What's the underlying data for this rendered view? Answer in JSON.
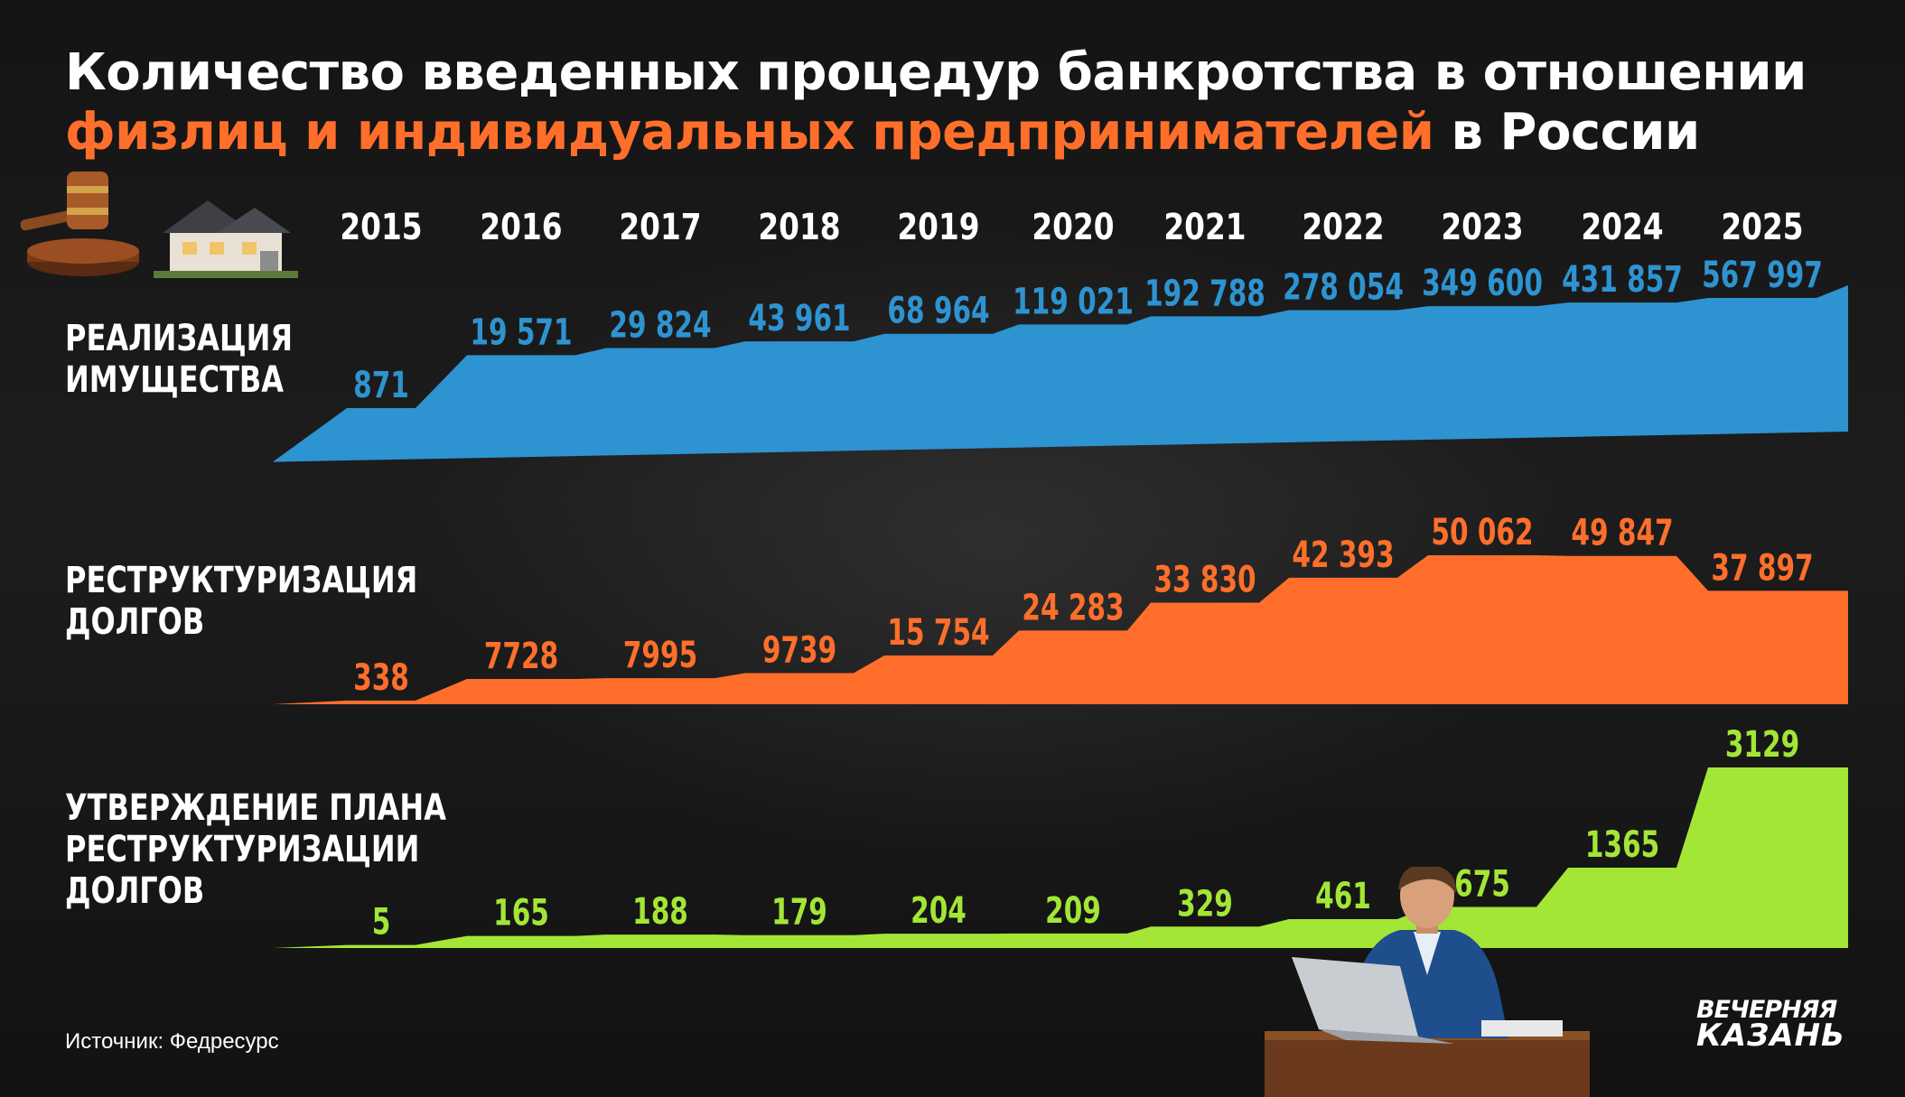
{
  "title": {
    "line1": "Количество введенных процедур банкротства в отношении",
    "line2_accent": "физлиц и индивидуальных предпринимателей",
    "line2_rest": " в России"
  },
  "source": "Источник: Федресурс",
  "logo": {
    "line1": "ВЕЧЕРНЯЯ",
    "line2": "КАЗАНЬ"
  },
  "colors": {
    "blue": "#2e93d1",
    "orange": "#ff6f2b",
    "green": "#a3e636",
    "background": "#141414",
    "text": "#ffffff"
  },
  "chart_data": {
    "type": "area",
    "x": [
      "2015",
      "2016",
      "2017",
      "2018",
      "2019",
      "2020",
      "2021",
      "2022",
      "2023",
      "2024",
      "2025"
    ],
    "series": [
      {
        "name": "РЕАЛИЗАЦИЯ ИМУЩЕСТВА",
        "label_lines": [
          "РЕАЛИЗАЦИЯ",
          "ИМУЩЕСТВА"
        ],
        "color": "#2e93d1",
        "values": [
          871,
          19571,
          29824,
          43961,
          68964,
          119021,
          192788,
          278054,
          349600,
          431857,
          567997
        ],
        "value_labels": [
          "871",
          "19 571",
          "29 824",
          "43 961",
          "68 964",
          "119 021",
          "192 788",
          "278 054",
          "349 600",
          "431 857",
          "567 997"
        ]
      },
      {
        "name": "РЕСТРУКТУРИЗАЦИЯ ДОЛГОВ",
        "label_lines": [
          "РЕСТРУКТУРИЗАЦИЯ",
          "ДОЛГОВ"
        ],
        "color": "#ff6f2b",
        "values": [
          338,
          7728,
          7995,
          9739,
          15754,
          24283,
          33830,
          42393,
          50062,
          49847,
          37897
        ],
        "value_labels": [
          "338",
          "7728",
          "7995",
          "9739",
          "15 754",
          "24 283",
          "33 830",
          "42 393",
          "50 062",
          "49 847",
          "37 897"
        ]
      },
      {
        "name": "УТВЕРЖДЕНИЕ ПЛАНА РЕСТРУКТУРИЗАЦИИ ДОЛГОВ",
        "label_lines": [
          "УТВЕРЖДЕНИЕ ПЛАНА",
          "РЕСТРУКТУРИЗАЦИИ",
          "ДОЛГОВ"
        ],
        "color": "#a3e636",
        "values": [
          5,
          165,
          188,
          179,
          204,
          209,
          329,
          461,
          675,
          1365,
          3129
        ],
        "value_labels": [
          "5",
          "165",
          "188",
          "179",
          "204",
          "209",
          "329",
          "461",
          "675",
          "1365",
          "3129"
        ]
      }
    ]
  }
}
